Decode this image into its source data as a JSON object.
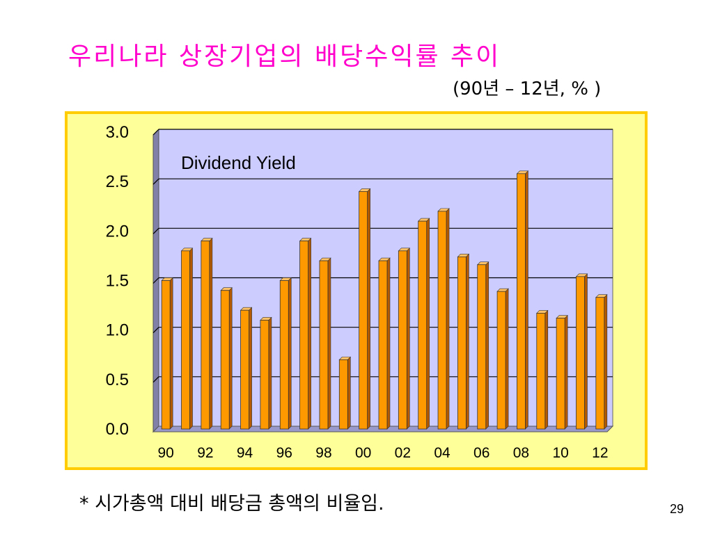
{
  "slide": {
    "title": "우리나라 상장기업의 배당수익률 추이",
    "subtitle": "(90년 – 12년, % )",
    "footnote": "* 시가총액 대비 배당금 총액의 비율임.",
    "page_number": "29"
  },
  "colors": {
    "title": "#ff00cc",
    "frame_fill": "#ffff99",
    "frame_border": "#ffcc00",
    "plot_back": "#ccccff",
    "plot_side": "#8080a8",
    "plot_floor": "#9999cc",
    "bar_front": "#ff9900",
    "bar_side": "#b35900",
    "bar_top": "#ffc266"
  },
  "chart_data": {
    "type": "bar",
    "annotation": "Dividend Yield",
    "categories": [
      "90",
      "91",
      "92",
      "93",
      "94",
      "95",
      "96",
      "97",
      "98",
      "99",
      "00",
      "01",
      "02",
      "03",
      "04",
      "05",
      "06",
      "07",
      "08",
      "09",
      "10",
      "11",
      "12"
    ],
    "x_tick_labels": [
      "90",
      "92",
      "94",
      "96",
      "98",
      "00",
      "02",
      "04",
      "06",
      "08",
      "10",
      "12"
    ],
    "series": [
      {
        "values": [
          1.5,
          1.8,
          1.9,
          1.4,
          1.2,
          1.1,
          1.5,
          1.9,
          1.7,
          0.7,
          2.4,
          1.7,
          1.8,
          2.1,
          2.2,
          1.74,
          1.66,
          1.39,
          2.58,
          1.17,
          1.12,
          1.54,
          1.33
        ]
      }
    ],
    "y_tick_labels": [
      "0.0",
      "0.5",
      "1.0",
      "1.5",
      "2.0",
      "2.5",
      "3.0"
    ],
    "ylim": [
      0,
      3.0
    ],
    "grid": true,
    "style": "3d"
  }
}
